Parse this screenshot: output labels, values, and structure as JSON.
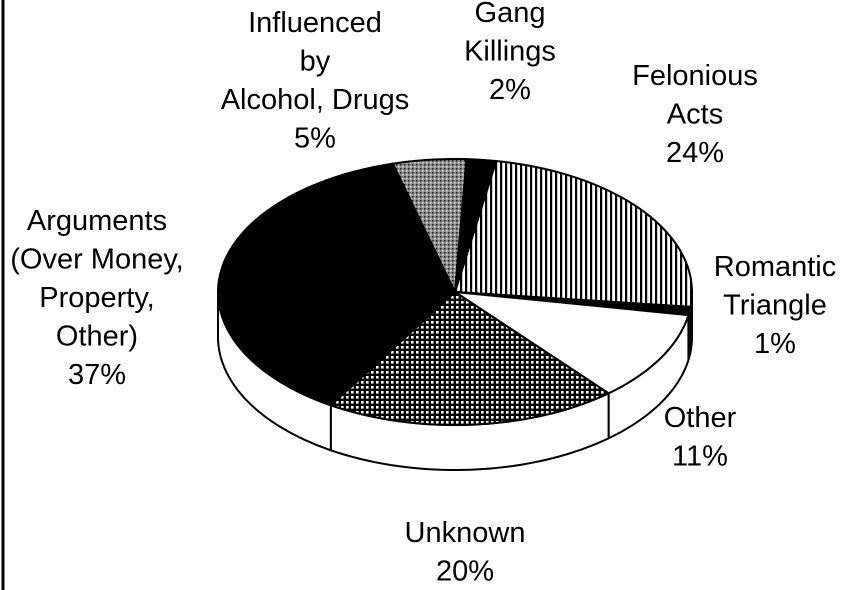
{
  "chart_data": {
    "type": "pie",
    "categories": [
      [
        "Felonious",
        "Acts"
      ],
      [
        "Romantic",
        "Triangle"
      ],
      [
        "Other"
      ],
      [
        "Unknown"
      ],
      [
        "Arguments",
        "(Over Money,",
        "Property,",
        "Other)"
      ],
      [
        "Influenced",
        "by",
        "Alcohol, Drugs"
      ],
      [
        "Gang",
        "Killings"
      ]
    ],
    "values": [
      24,
      1,
      11,
      20,
      37,
      5,
      2
    ],
    "value_labels": [
      "24%",
      "1%",
      "11%",
      "20%",
      "37%",
      "5%",
      "2%"
    ],
    "fills": [
      "vertical-lines",
      "solid",
      "none",
      "dots",
      "solid",
      "stipple",
      "solid"
    ]
  }
}
